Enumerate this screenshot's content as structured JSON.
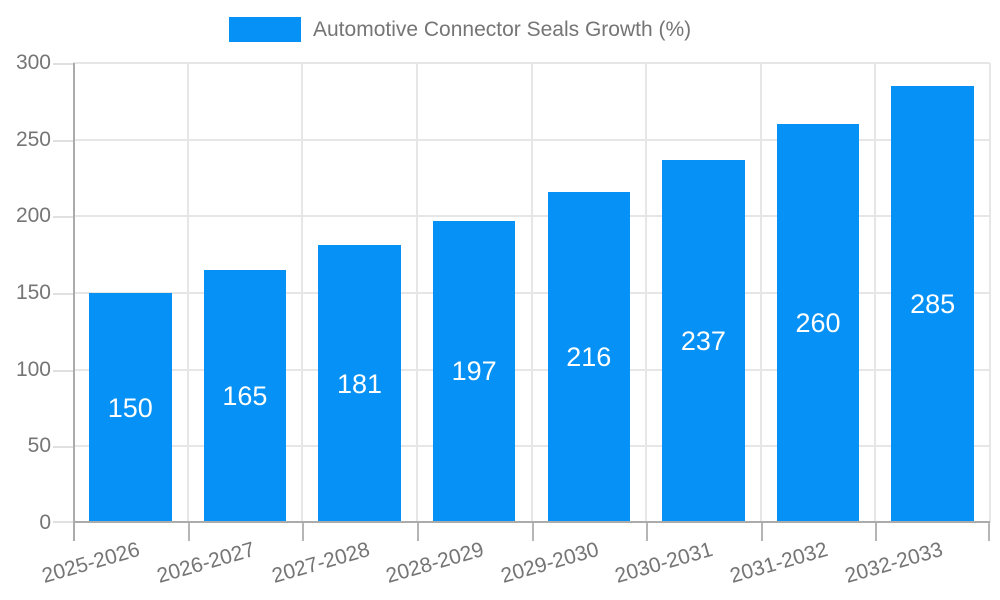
{
  "chart_data": {
    "type": "bar",
    "title": "Automotive Connector Seals Growth (%)",
    "legend": {
      "label": "Automotive Connector Seals Growth (%)",
      "position": "top"
    },
    "categories": [
      "2025-2026",
      "2026-2027",
      "2027-2028",
      "2028-2029",
      "2029-2030",
      "2030-2031",
      "2031-2032",
      "2032-2033"
    ],
    "values": [
      150,
      165,
      181,
      197,
      216,
      237,
      260,
      285
    ],
    "bar_labels": [
      "150",
      "165",
      "181",
      "197",
      "216",
      "237",
      "260",
      "285"
    ],
    "xlabel": "",
    "ylabel": "",
    "ylim": [
      0,
      300
    ],
    "yticks": [
      0,
      50,
      100,
      150,
      200,
      250,
      300
    ],
    "grid": true,
    "x_tick_label_rotation_deg": -16,
    "colors": {
      "bar": "#0591F5",
      "bar_label": "#FFFFFF",
      "axis_text": "#757575",
      "axis_line": "#ABABAB",
      "gridline": "#E6E6E6",
      "y_tick": "#E0E0E0",
      "x_tick": "#B5B5B5",
      "background": "#FFFFFF"
    }
  }
}
